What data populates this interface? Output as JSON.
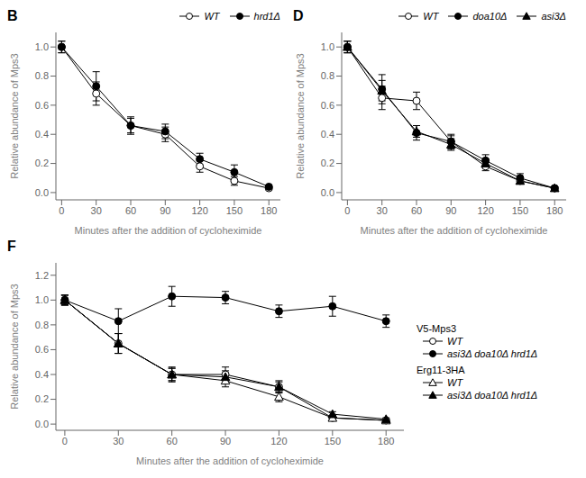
{
  "chart_data": [
    {
      "type": "line",
      "title": "B",
      "x_label": "Minutes after the addition of cycloheximide",
      "y_label": "Relative abundance of Mps3",
      "x": [
        0,
        30,
        60,
        90,
        120,
        150,
        180
      ],
      "xlim": [
        -5,
        190
      ],
      "xticks": [
        0,
        30,
        60,
        90,
        120,
        150,
        180
      ],
      "ylim": [
        -0.05,
        1.1
      ],
      "yticks": [
        {
          "value": 0,
          "label": "0.0"
        },
        0.2,
        0.4,
        0.6,
        0.8,
        {
          "value": 1.0,
          "label": "1.0"
        }
      ],
      "legend": "upper right",
      "series": [
        {
          "name": "WT",
          "color": "#000000",
          "marker": "circle-open",
          "values": [
            1.0,
            0.68,
            0.46,
            0.4,
            0.18,
            0.08,
            0.03
          ],
          "yerr": [
            0.04,
            0.08,
            0.06,
            0.05,
            0.04,
            0.03,
            0.01
          ]
        },
        {
          "name": "hrd1Δ",
          "color": "#000000",
          "marker": "circle",
          "values": [
            1.0,
            0.73,
            0.46,
            0.42,
            0.23,
            0.14,
            0.04
          ],
          "yerr": [
            0.04,
            0.1,
            0.05,
            0.05,
            0.04,
            0.05,
            0.01
          ]
        }
      ]
    },
    {
      "type": "line",
      "title": "D",
      "x_label": "Minutes after the addition of cycloheximide",
      "y_label": "Relative abundance of Mps3",
      "x": [
        0,
        30,
        60,
        90,
        120,
        150,
        180
      ],
      "xlim": [
        -5,
        190
      ],
      "xticks": [
        0,
        30,
        60,
        90,
        120,
        150,
        180
      ],
      "ylim": [
        -0.05,
        1.1
      ],
      "yticks": [
        {
          "value": 0,
          "label": "0.0"
        },
        0.2,
        0.4,
        0.6,
        0.8,
        {
          "value": 1.0,
          "label": "1.0"
        }
      ],
      "legend": "upper right",
      "series": [
        {
          "name": "WT",
          "color": "#000000",
          "marker": "circle-open",
          "values": [
            1.0,
            0.65,
            0.63,
            0.35,
            0.18,
            0.08,
            0.03
          ],
          "yerr": [
            0.04,
            0.08,
            0.06,
            0.05,
            0.03,
            0.02,
            0.01
          ]
        },
        {
          "name": "doa10Δ",
          "color": "#000000",
          "marker": "circle",
          "values": [
            1.0,
            0.71,
            0.41,
            0.35,
            0.22,
            0.1,
            0.03
          ],
          "yerr": [
            0.04,
            0.1,
            0.05,
            0.04,
            0.04,
            0.03,
            0.01
          ]
        },
        {
          "name": "asi3Δ",
          "color": "#000000",
          "marker": "triangle",
          "values": [
            1.0,
            0.7,
            0.42,
            0.33,
            0.2,
            0.08,
            0.03
          ],
          "yerr": [
            0.04,
            0.07,
            0.04,
            0.04,
            0.03,
            0.02,
            0.01
          ]
        }
      ]
    },
    {
      "type": "line",
      "title": "F",
      "x_label": "Minutes after the addition of cycloheximide",
      "y_label": "Relative abundance of Mps3",
      "x": [
        0,
        30,
        60,
        90,
        120,
        150,
        180
      ],
      "xlim": [
        -5,
        190
      ],
      "xticks": [
        0,
        30,
        60,
        90,
        120,
        150,
        180
      ],
      "ylim": [
        -0.05,
        1.3
      ],
      "yticks": [
        {
          "value": 0,
          "label": "0.0"
        },
        0.2,
        0.4,
        0.6,
        0.8,
        {
          "value": 1.0,
          "label": "1.0"
        },
        1.2
      ],
      "legend": "right",
      "annotations": [
        "V5-Mps3",
        "Erg11-3HA"
      ],
      "series": [
        {
          "name": "WT",
          "color": "#000000",
          "marker": "circle-open",
          "values": [
            1.0,
            0.65,
            0.4,
            0.4,
            0.3,
            0.05,
            0.03
          ],
          "yerr": [
            0.04,
            0.08,
            0.06,
            0.06,
            0.05,
            0.02,
            0.01
          ]
        },
        {
          "name": "asi3Δ doa10Δ hrd1Δ",
          "color": "#000000",
          "marker": "circle",
          "values": [
            1.0,
            0.83,
            1.03,
            1.02,
            0.91,
            0.95,
            0.83
          ],
          "yerr": [
            0.04,
            0.1,
            0.08,
            0.05,
            0.05,
            0.08,
            0.05
          ]
        },
        {
          "name": "WT",
          "color": "#000000",
          "marker": "triangle-open",
          "values": [
            1.0,
            0.65,
            0.4,
            0.35,
            0.22,
            0.05,
            0.03
          ],
          "yerr": [
            0.04,
            0.08,
            0.05,
            0.05,
            0.04,
            0.02,
            0.01
          ]
        },
        {
          "name": "asi3Δ doa10Δ hrd1Δ",
          "color": "#000000",
          "marker": "triangle",
          "values": [
            1.0,
            0.65,
            0.4,
            0.38,
            0.3,
            0.08,
            0.04
          ],
          "yerr": [
            0.04,
            0.08,
            0.05,
            0.05,
            0.04,
            0.02,
            0.01
          ]
        }
      ]
    }
  ]
}
